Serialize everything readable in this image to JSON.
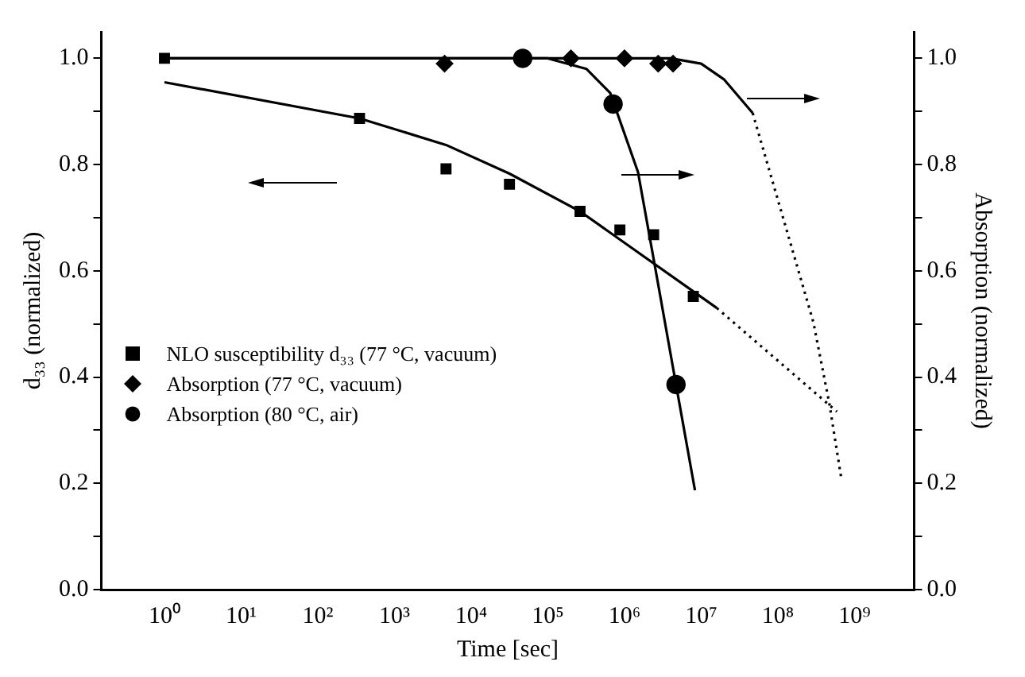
{
  "chart_data": {
    "type": "scatter",
    "xlabel": "Time [sec]",
    "ylabel": "d₃₃ (normalized)",
    "y2label": "Absorption (normalized)",
    "log": "x",
    "grid": false,
    "legend": "left",
    "xlim": [
      0.15,
      6000000000
    ],
    "xticks": [
      {
        "value": 1,
        "label": "10⁰"
      },
      {
        "value": 10,
        "label": "10¹"
      },
      {
        "value": 100,
        "label": "10²"
      },
      {
        "value": 1000,
        "label": "10³"
      },
      {
        "value": 10000,
        "label": "10⁴"
      },
      {
        "value": 100000,
        "label": "10⁵"
      },
      {
        "value": 1000000,
        "label": "10⁶"
      },
      {
        "value": 10000000,
        "label": "10⁷"
      },
      {
        "value": 100000000,
        "label": "10⁸"
      },
      {
        "value": 1000000000,
        "label": "10⁹"
      }
    ],
    "ylim": [
      0,
      1.05
    ],
    "yticks": [
      {
        "value": 0,
        "label": "0.0"
      },
      {
        "value": 0.1,
        "label": null
      },
      {
        "value": 0.2,
        "label": "0.2"
      },
      {
        "value": 0.3,
        "label": null
      },
      {
        "value": 0.4,
        "label": "0.4"
      },
      {
        "value": 0.5,
        "label": null
      },
      {
        "value": 0.6,
        "label": "0.6"
      },
      {
        "value": 0.7,
        "label": null
      },
      {
        "value": 0.8,
        "label": "0.8"
      },
      {
        "value": 0.9,
        "label": null
      },
      {
        "value": 1,
        "label": "1.0"
      }
    ],
    "y2lim": [
      0,
      1.05
    ],
    "y2ticks": [
      {
        "value": 0,
        "label": "0.0"
      },
      {
        "value": 0.1,
        "label": null
      },
      {
        "value": 0.2,
        "label": "0.2"
      },
      {
        "value": 0.3,
        "label": null
      },
      {
        "value": 0.4,
        "label": "0.4"
      },
      {
        "value": 0.5,
        "label": null
      },
      {
        "value": 0.6,
        "label": "0.6"
      },
      {
        "value": 0.7,
        "label": null
      },
      {
        "value": 0.8,
        "label": "0.8"
      },
      {
        "value": 0.9,
        "label": null
      },
      {
        "value": 1,
        "label": "1.0"
      }
    ],
    "series": [
      {
        "name": "NLO susceptibility d₃₃  (77 °C, vacuum)",
        "marker": "square",
        "color": "#000000",
        "x": [
          1,
          350,
          4700,
          31600,
          263000,
          871000,
          2400000,
          7900000
        ],
        "values": [
          1.0,
          0.887,
          0.792,
          0.763,
          0.712,
          0.677,
          0.668,
          0.552
        ]
      },
      {
        "name": "Absorption  (77 °C, vacuum)",
        "marker": "diamond",
        "color": "#000000",
        "x": [
          4500,
          200000,
          1000000,
          2750000,
          4300000
        ],
        "values": [
          0.99,
          1.0,
          1.0,
          0.99,
          0.99
        ]
      },
      {
        "name": "Absorption  (80 °C, air)",
        "marker": "circle",
        "color": "#000000",
        "x": [
          47000,
          710000,
          4700000
        ],
        "values": [
          1.0,
          0.914,
          0.386
        ]
      },
      {
        "type": "line",
        "marker": "none",
        "line_style": "solid",
        "color": "#000000",
        "x": [
          1,
          350,
          4700,
          31600,
          263000,
          16000000
        ],
        "values": [
          0.955,
          0.887,
          0.837,
          0.783,
          0.712,
          0.53
        ]
      },
      {
        "type": "line",
        "marker": "none",
        "line_style": "dotted",
        "color": "#000000",
        "x": [
          16000000,
          590000000
        ],
        "values": [
          0.53,
          0.335
        ]
      },
      {
        "type": "line",
        "marker": "none",
        "line_style": "solid",
        "color": "#000000",
        "x": [
          1,
          4000000,
          10000000,
          20000000,
          47000000
        ],
        "values": [
          1.0,
          1.0,
          0.99,
          0.96,
          0.897
        ]
      },
      {
        "type": "line",
        "marker": "none",
        "line_style": "dotted",
        "color": "#000000",
        "x": [
          47000000,
          290000000,
          470000000,
          680000000
        ],
        "values": [
          0.897,
          0.504,
          0.35,
          0.205
        ]
      },
      {
        "type": "line",
        "marker": "none",
        "line_style": "solid",
        "color": "#000000",
        "x": [
          1,
          100000,
          320000,
          650000,
          1500000,
          2500000,
          4700000,
          8300000
        ],
        "values": [
          1.0,
          1.0,
          0.98,
          0.935,
          0.786,
          0.608,
          0.386,
          0.187
        ]
      }
    ]
  }
}
